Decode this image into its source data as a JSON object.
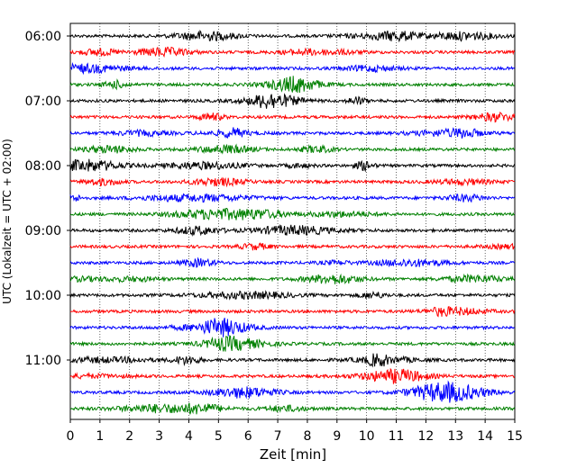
{
  "chart_data": {
    "type": "line",
    "title": "",
    "xlabel": "Zeit  [min]",
    "ylabel": "UTC (Lokalzeit = UTC + 02:00)",
    "xlim": [
      0,
      15
    ],
    "x_ticks": [
      "0",
      "1",
      "2",
      "3",
      "4",
      "5",
      "6",
      "7",
      "8",
      "9",
      "10",
      "11",
      "12",
      "13",
      "14",
      "15"
    ],
    "y_tick_labels": [
      "06:00",
      "07:00",
      "08:00",
      "09:00",
      "10:00",
      "11:00"
    ],
    "grid_x": true,
    "trace_colors": [
      "#000000",
      "#ff0000",
      "#0000ff",
      "#008000"
    ],
    "trace_interval_minutes": 15,
    "traces": [
      "06:00",
      "06:15",
      "06:30",
      "06:45",
      "07:00",
      "07:15",
      "07:30",
      "07:45",
      "08:00",
      "08:15",
      "08:30",
      "08:45",
      "09:00",
      "09:15",
      "09:30",
      "09:45",
      "10:00",
      "10:15",
      "10:30",
      "10:45",
      "11:00",
      "11:15",
      "11:30",
      "11:45"
    ]
  }
}
